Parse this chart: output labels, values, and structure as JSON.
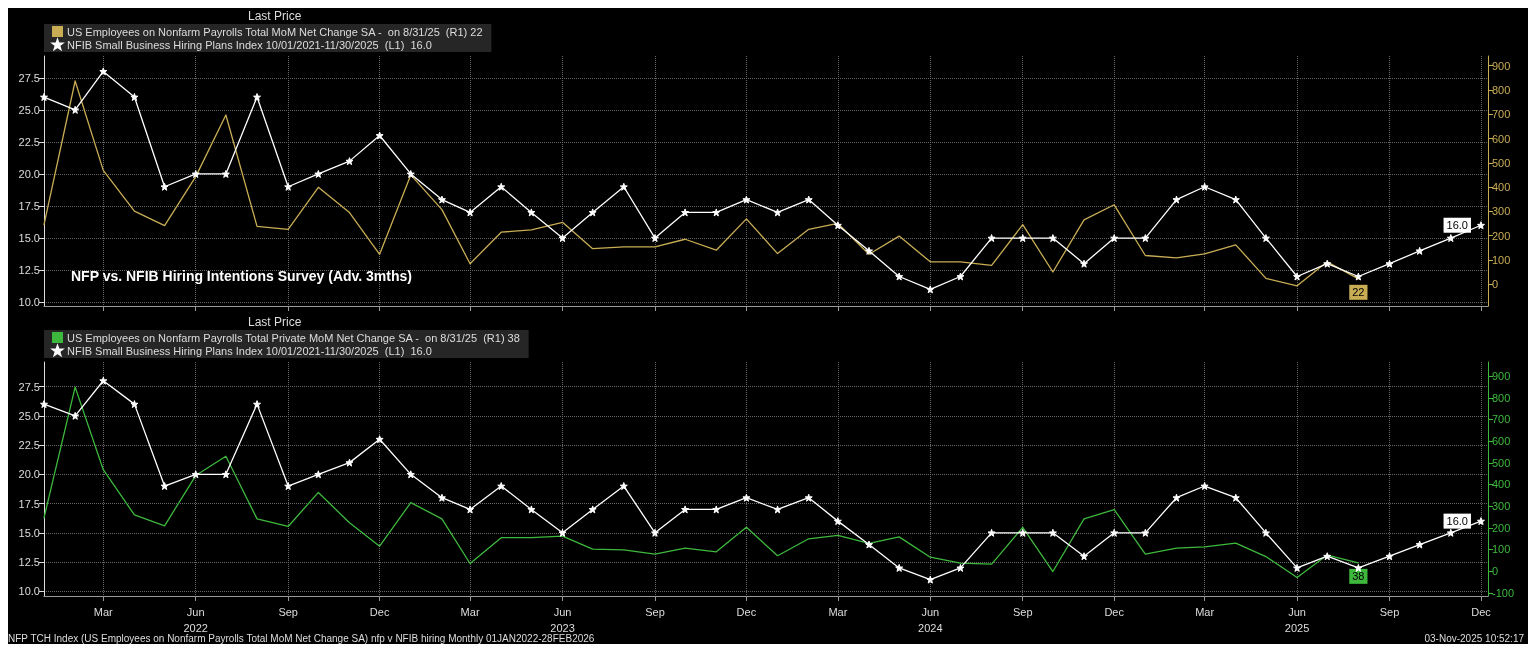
{
  "chart_data": [
    {
      "type": "line",
      "title": "NFP vs. NFIB Hiring Intentions Survey (Adv. 3mths)",
      "legend_title": "Last Price",
      "legend": "top left",
      "grid": true,
      "tick_labels": "y",
      "x": [
        "2022-01",
        "2022-02",
        "2022-03",
        "2022-04",
        "2022-05",
        "2022-06",
        "2022-07",
        "2022-08",
        "2022-09",
        "2022-10",
        "2022-11",
        "2022-12",
        "2023-01",
        "2023-02",
        "2023-03",
        "2023-04",
        "2023-05",
        "2023-06",
        "2023-07",
        "2023-08",
        "2023-09",
        "2023-10",
        "2023-11",
        "2023-12",
        "2024-01",
        "2024-02",
        "2024-03",
        "2024-04",
        "2024-05",
        "2024-06",
        "2024-07",
        "2024-08",
        "2024-09",
        "2024-10",
        "2024-11",
        "2024-12",
        "2025-01",
        "2025-02",
        "2025-03",
        "2025-04",
        "2025-05",
        "2025-06",
        "2025-07",
        "2025-08",
        "2025-09",
        "2025-10",
        "2025-11",
        "2025-12"
      ],
      "xlim": [
        "2022-01",
        "2025-12-08"
      ],
      "xticks": [
        {
          "value": "2022-03",
          "label": null
        },
        {
          "value": "2022-06",
          "label": null
        },
        {
          "value": "2022-09",
          "label": null
        },
        {
          "value": "2022-12",
          "label": null
        },
        {
          "value": "2023-03",
          "label": null
        },
        {
          "value": "2023-06",
          "label": null
        },
        {
          "value": "2023-09",
          "label": null
        },
        {
          "value": "2023-12",
          "label": null
        },
        {
          "value": "2024-03",
          "label": null
        },
        {
          "value": "2024-06",
          "label": null
        },
        {
          "value": "2024-09",
          "label": null
        },
        {
          "value": "2024-12",
          "label": null
        },
        {
          "value": "2025-03",
          "label": null
        },
        {
          "value": "2025-06",
          "label": null
        },
        {
          "value": "2025-09",
          "label": null
        },
        {
          "value": "2025-12",
          "label": null
        }
      ],
      "ylim": [
        9.7,
        29.2
      ],
      "yticks": [
        {
          "value": 10,
          "label": "10.0"
        },
        {
          "value": 12.5,
          "label": "12.5"
        },
        {
          "value": 15,
          "label": "15.0"
        },
        {
          "value": 17.5,
          "label": "17.5"
        },
        {
          "value": 20,
          "label": "20.0"
        },
        {
          "value": 22.5,
          "label": "22.5"
        },
        {
          "value": 25,
          "label": "25.0"
        },
        {
          "value": 27.5,
          "label": "27.5"
        }
      ],
      "y2lim": [
        -90,
        940
      ],
      "y2ticks": [
        0,
        100,
        200,
        300,
        400,
        500,
        600,
        700,
        800,
        900
      ],
      "series": [
        {
          "name": "US Employees on Nonfarm Payrolls Total MoM Net Change SA -  on 8/31/25  (R1) 22",
          "color": "#c8ad55",
          "axis": "y2",
          "values": [
            245,
            837,
            469,
            301,
            241,
            443,
            697,
            238,
            226,
            399,
            295,
            123,
            450,
            307,
            84,
            214,
            224,
            255,
            146,
            154,
            154,
            185,
            140,
            269,
            126,
            226,
            250,
            123,
            198,
            92,
            92,
            77,
            245,
            50,
            265,
            327,
            118,
            108,
            125,
            162,
            24,
            -7,
            92,
            22,
            null,
            null,
            null,
            null
          ],
          "value_labels": [
            null,
            null,
            null,
            null,
            null,
            null,
            null,
            null,
            null,
            null,
            null,
            null,
            null,
            null,
            null,
            null,
            null,
            null,
            null,
            null,
            null,
            null,
            null,
            null,
            null,
            null,
            null,
            null,
            null,
            null,
            null,
            null,
            null,
            null,
            null,
            null,
            null,
            null,
            null,
            null,
            null,
            null,
            null,
            "22",
            null,
            null,
            null,
            null
          ]
        },
        {
          "name": "NFIB Small Business Hiring Plans Index 10/01/2021-11/30/2025  (L1)  16.0",
          "color": "#ffffff",
          "marker": "star",
          "values": [
            26,
            25,
            28,
            26,
            19,
            20,
            20,
            26,
            19,
            20,
            21,
            23,
            20,
            18,
            17,
            19,
            17,
            15,
            17,
            19,
            15,
            17,
            17,
            18,
            17,
            18,
            16,
            14,
            12,
            11,
            12,
            15,
            15,
            15,
            13,
            15,
            15,
            18,
            19,
            18,
            15,
            12,
            13,
            12,
            13,
            14,
            15,
            16
          ],
          "value_labels": [
            null,
            null,
            null,
            null,
            null,
            null,
            null,
            null,
            null,
            null,
            null,
            null,
            null,
            null,
            null,
            null,
            null,
            null,
            null,
            null,
            null,
            null,
            null,
            null,
            null,
            null,
            null,
            null,
            null,
            null,
            null,
            null,
            null,
            null,
            null,
            null,
            null,
            null,
            null,
            null,
            null,
            null,
            null,
            null,
            null,
            null,
            null,
            "16.0"
          ]
        }
      ]
    },
    {
      "type": "line",
      "legend_title": "Last Price",
      "legend": "top left",
      "grid": true,
      "annotations": [
        "NFP TCH Index (US Employees on Nonfarm Payrolls Total MoM Net Change SA) nfp v NFIB hiring Monthly 01JAN2022-28FEB2026",
        "03-Nov-2025 10:52:17"
      ],
      "x": [
        "2022-01",
        "2022-02",
        "2022-03",
        "2022-04",
        "2022-05",
        "2022-06",
        "2022-07",
        "2022-08",
        "2022-09",
        "2022-10",
        "2022-11",
        "2022-12",
        "2023-01",
        "2023-02",
        "2023-03",
        "2023-04",
        "2023-05",
        "2023-06",
        "2023-07",
        "2023-08",
        "2023-09",
        "2023-10",
        "2023-11",
        "2023-12",
        "2024-01",
        "2024-02",
        "2024-03",
        "2024-04",
        "2024-05",
        "2024-06",
        "2024-07",
        "2024-08",
        "2024-09",
        "2024-10",
        "2024-11",
        "2024-12",
        "2025-01",
        "2025-02",
        "2025-03",
        "2025-04",
        "2025-05",
        "2025-06",
        "2025-07",
        "2025-08",
        "2025-09",
        "2025-10",
        "2025-11",
        "2025-12"
      ],
      "xlim": [
        "2022-01",
        "2025-12-08"
      ],
      "xticks": [
        {
          "value": "2022-03",
          "label": "Mar"
        },
        {
          "value": "2022-06",
          "label": "Jun\n2022"
        },
        {
          "value": "2022-09",
          "label": "Sep"
        },
        {
          "value": "2022-12",
          "label": "Dec"
        },
        {
          "value": "2023-03",
          "label": "Mar"
        },
        {
          "value": "2023-06",
          "label": "Jun\n2023"
        },
        {
          "value": "2023-09",
          "label": "Sep"
        },
        {
          "value": "2023-12",
          "label": "Dec"
        },
        {
          "value": "2024-03",
          "label": "Mar"
        },
        {
          "value": "2024-06",
          "label": "Jun\n2024"
        },
        {
          "value": "2024-09",
          "label": "Sep"
        },
        {
          "value": "2024-12",
          "label": "Dec"
        },
        {
          "value": "2025-03",
          "label": "Mar"
        },
        {
          "value": "2025-06",
          "label": "Jun\n2025"
        },
        {
          "value": "2025-09",
          "label": "Sep"
        },
        {
          "value": "2025-12",
          "label": "Dec"
        }
      ],
      "ylim": [
        9.6,
        29.6
      ],
      "yticks": [
        {
          "value": 10,
          "label": "10.0"
        },
        {
          "value": 12.5,
          "label": "12.5"
        },
        {
          "value": 15,
          "label": "15.0"
        },
        {
          "value": 17.5,
          "label": "17.5"
        },
        {
          "value": 20,
          "label": "20.0"
        },
        {
          "value": 22.5,
          "label": "22.5"
        },
        {
          "value": 25,
          "label": "25.0"
        },
        {
          "value": 27.5,
          "label": "27.5"
        }
      ],
      "y2lim": [
        -115,
        965
      ],
      "y2ticks": [
        -100,
        0,
        100,
        200,
        300,
        400,
        500,
        600,
        700,
        800,
        900
      ],
      "series": [
        {
          "name": "US Employees on Nonfarm Payrolls Total Private MoM Net Change SA -  on 8/31/25  (R1) 38",
          "color": "#3db83d",
          "axis": "y2",
          "values": [
            246,
            849,
            468,
            259,
            209,
            441,
            530,
            241,
            206,
            363,
            223,
            115,
            316,
            241,
            35,
            154,
            154,
            161,
            101,
            98,
            78,
            106,
            89,
            202,
            71,
            149,
            165,
            128,
            158,
            64,
            37,
            32,
            202,
            -2,
            241,
            284,
            78,
            106,
            112,
            129,
            67,
            -30,
            74,
            38,
            null,
            null,
            null,
            null
          ],
          "value_labels": [
            null,
            null,
            null,
            null,
            null,
            null,
            null,
            null,
            null,
            null,
            null,
            null,
            null,
            null,
            null,
            null,
            null,
            null,
            null,
            null,
            null,
            null,
            null,
            null,
            null,
            null,
            null,
            null,
            null,
            null,
            null,
            null,
            null,
            null,
            null,
            null,
            null,
            null,
            null,
            null,
            null,
            null,
            null,
            "38",
            null,
            null,
            null,
            null
          ]
        },
        {
          "name": "NFIB Small Business Hiring Plans Index 10/01/2021-11/30/2025  (L1)  16.0",
          "color": "#ffffff",
          "marker": "star",
          "values": [
            26,
            25,
            28,
            26,
            19,
            20,
            20,
            26,
            19,
            20,
            21,
            23,
            20,
            18,
            17,
            19,
            17,
            15,
            17,
            19,
            15,
            17,
            17,
            18,
            17,
            18,
            16,
            14,
            12,
            11,
            12,
            15,
            15,
            15,
            13,
            15,
            15,
            18,
            19,
            18,
            15,
            12,
            13,
            12,
            13,
            14,
            15,
            16
          ],
          "value_labels": [
            null,
            null,
            null,
            null,
            null,
            null,
            null,
            null,
            null,
            null,
            null,
            null,
            null,
            null,
            null,
            null,
            null,
            null,
            null,
            null,
            null,
            null,
            null,
            null,
            null,
            null,
            null,
            null,
            null,
            null,
            null,
            null,
            null,
            null,
            null,
            null,
            null,
            null,
            null,
            null,
            null,
            null,
            null,
            null,
            null,
            null,
            null,
            "16.0"
          ]
        }
      ]
    }
  ]
}
